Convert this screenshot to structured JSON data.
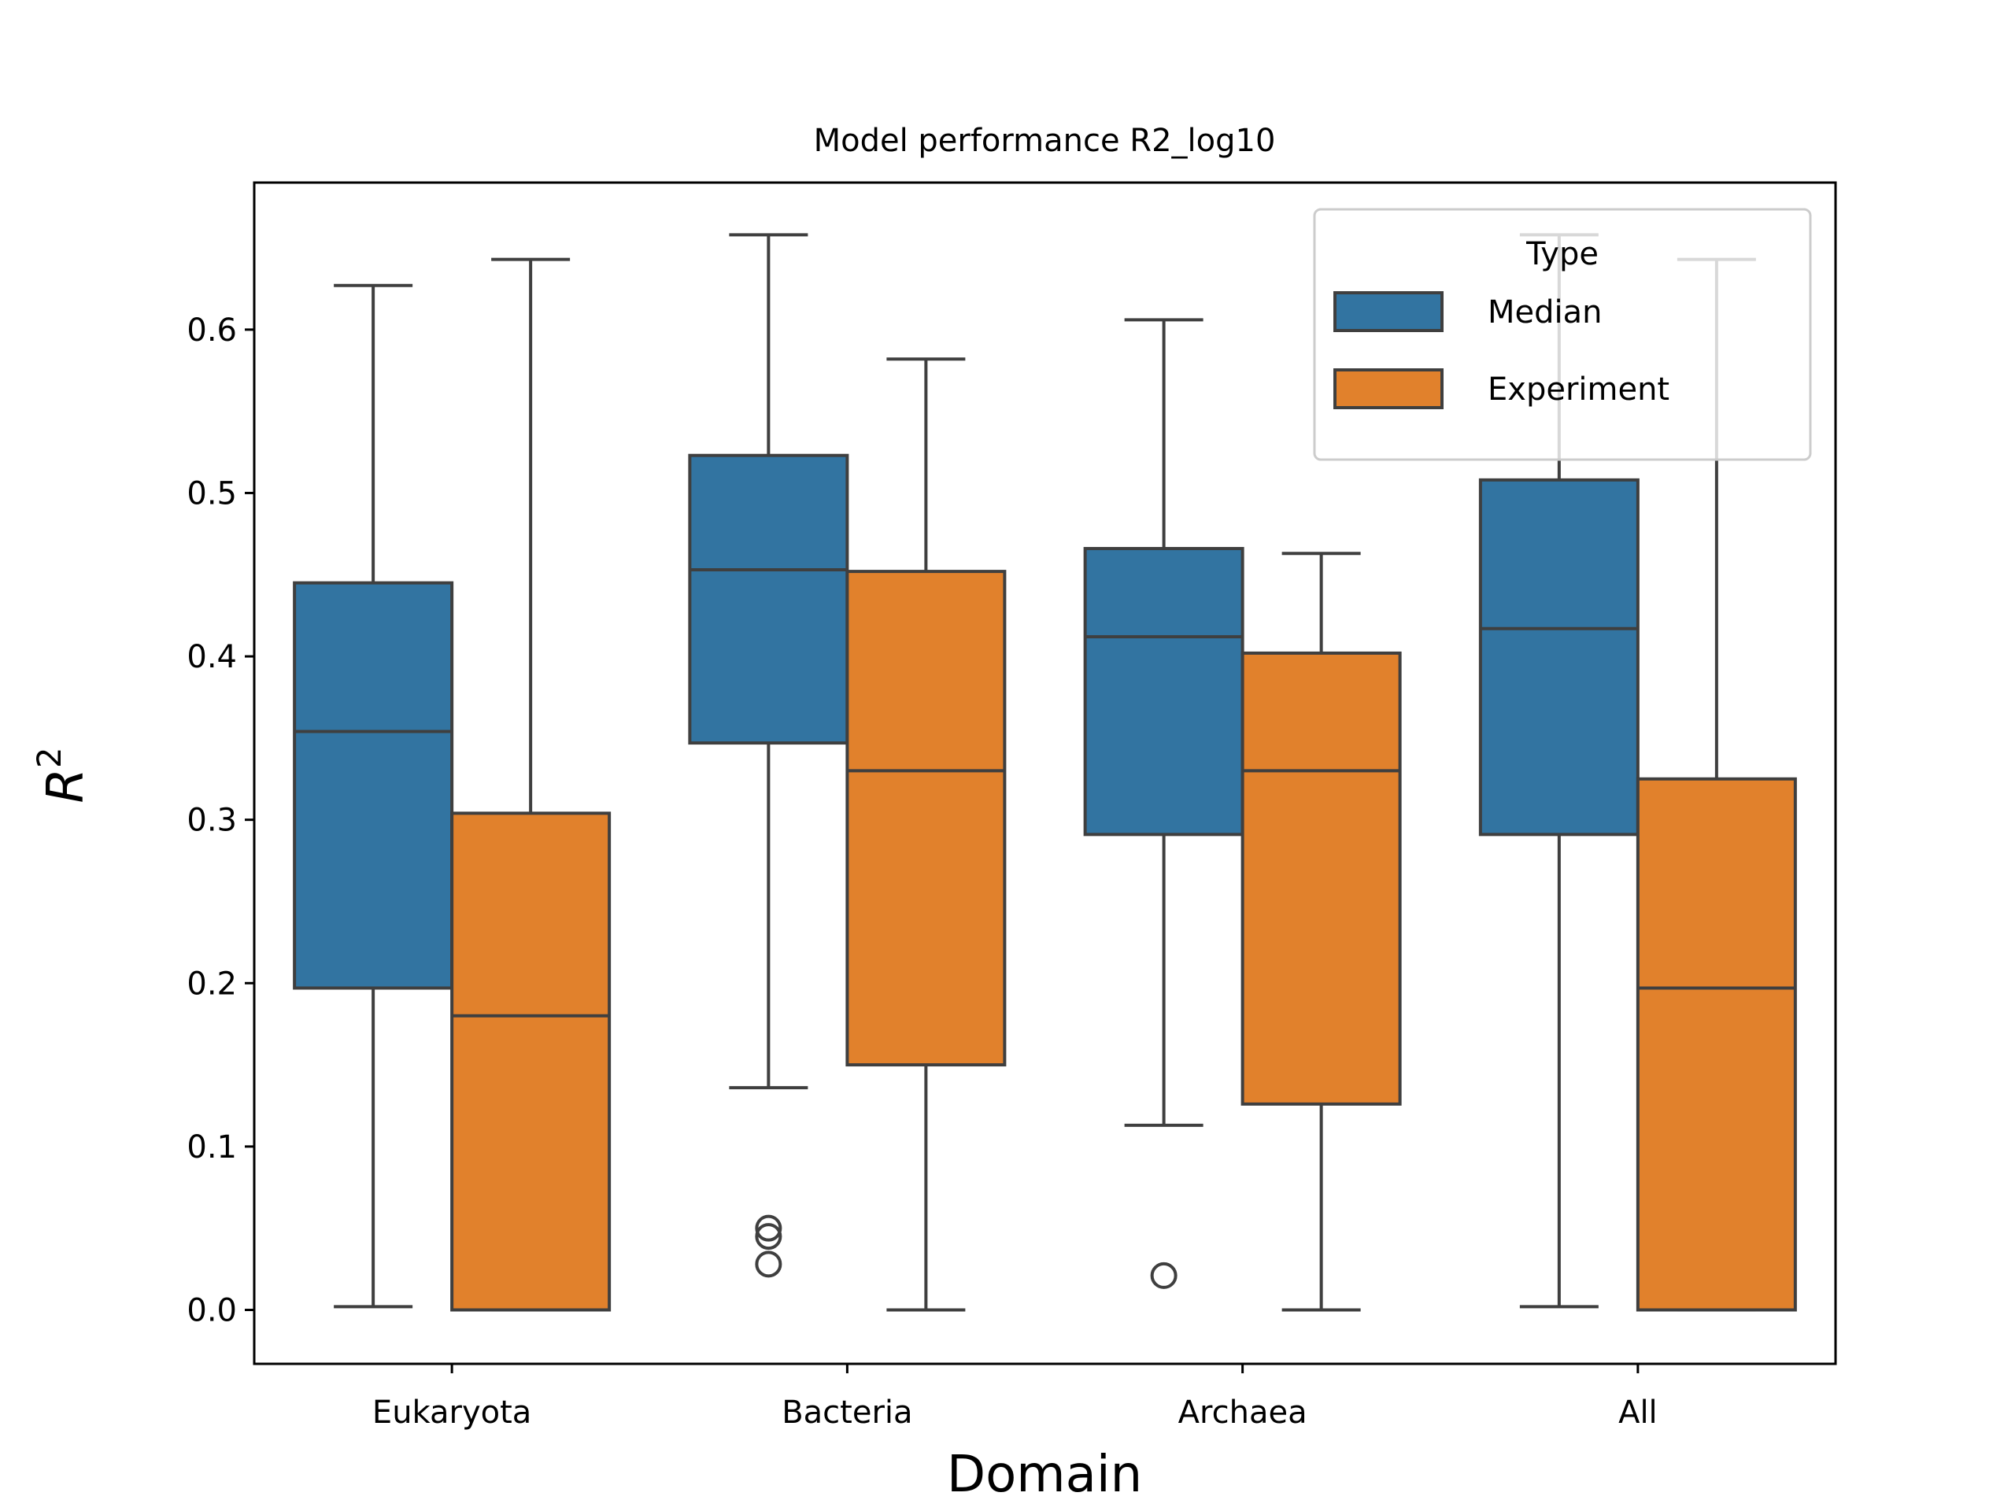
{
  "chart_data": {
    "type": "box",
    "title": "Model performance R2_log10",
    "xlabel": "Domain",
    "ylabel": "R",
    "ylabel_sup": "2",
    "categories": [
      "Eukaryota",
      "Bacteria",
      "Archaea",
      "All"
    ],
    "ylim": [
      -0.033,
      0.69
    ],
    "yticks": [
      0.0,
      0.1,
      0.2,
      0.3,
      0.4,
      0.5,
      0.6
    ],
    "ytick_labels": [
      "0.0",
      "0.1",
      "0.2",
      "0.3",
      "0.4",
      "0.5",
      "0.6"
    ],
    "grid": false,
    "legend": {
      "title": "Type",
      "position": "top-right",
      "entries": [
        "Median",
        "Experiment"
      ]
    },
    "series": [
      {
        "name": "Median",
        "color": "#3274a1",
        "boxes": [
          {
            "whisker_low": 0.002,
            "q1": 0.197,
            "median": 0.354,
            "q3": 0.445,
            "whisker_high": 0.627,
            "outliers": []
          },
          {
            "whisker_low": 0.136,
            "q1": 0.347,
            "median": 0.453,
            "q3": 0.523,
            "whisker_high": 0.658,
            "outliers": [
              0.028,
              0.045,
              0.05
            ]
          },
          {
            "whisker_low": 0.113,
            "q1": 0.291,
            "median": 0.412,
            "q3": 0.466,
            "whisker_high": 0.606,
            "outliers": [
              0.021
            ]
          },
          {
            "whisker_low": 0.002,
            "q1": 0.291,
            "median": 0.417,
            "q3": 0.508,
            "whisker_high": 0.658,
            "outliers": []
          }
        ]
      },
      {
        "name": "Experiment",
        "color": "#e1812c",
        "boxes": [
          {
            "whisker_low": 0.0,
            "q1": 0.0,
            "median": 0.18,
            "q3": 0.304,
            "whisker_high": 0.643,
            "outliers": []
          },
          {
            "whisker_low": 0.0,
            "q1": 0.15,
            "median": 0.33,
            "q3": 0.452,
            "whisker_high": 0.582,
            "outliers": []
          },
          {
            "whisker_low": 0.0,
            "q1": 0.126,
            "median": 0.33,
            "q3": 0.402,
            "whisker_high": 0.463,
            "outliers": []
          },
          {
            "whisker_low": 0.0,
            "q1": 0.0,
            "median": 0.197,
            "q3": 0.325,
            "whisker_high": 0.643,
            "outliers": []
          }
        ]
      }
    ]
  }
}
